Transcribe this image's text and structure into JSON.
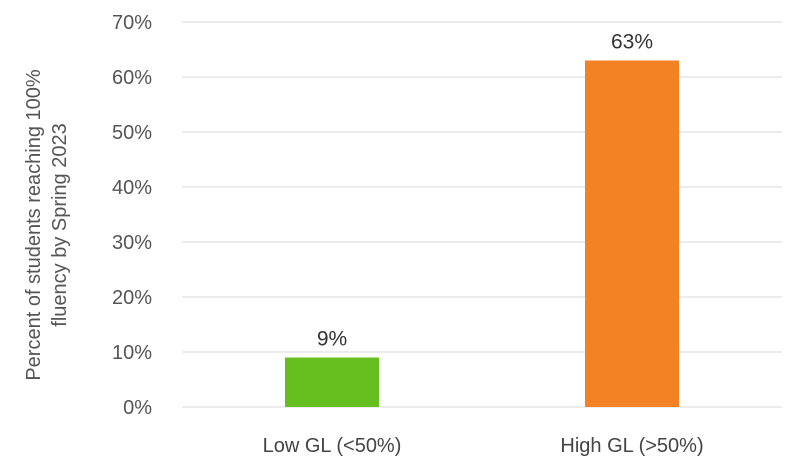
{
  "chart_data": {
    "type": "bar",
    "categories": [
      "Low GL (<50%)",
      "High GL (>50%)"
    ],
    "values": [
      9,
      63
    ],
    "value_labels": [
      "9%",
      "63%"
    ],
    "colors": [
      "#66bf1e",
      "#f28224"
    ],
    "title": "",
    "xlabel": "",
    "ylabel_lines": [
      "Percent of students reaching 100%",
      "fluency by Spring 2023"
    ],
    "ylim": [
      0,
      70
    ],
    "yticks": [
      0,
      10,
      20,
      30,
      40,
      50,
      60,
      70
    ],
    "ytick_labels": [
      "0%",
      "10%",
      "20%",
      "30%",
      "40%",
      "50%",
      "60%",
      "70%"
    ],
    "grid": true,
    "legend": "none"
  }
}
